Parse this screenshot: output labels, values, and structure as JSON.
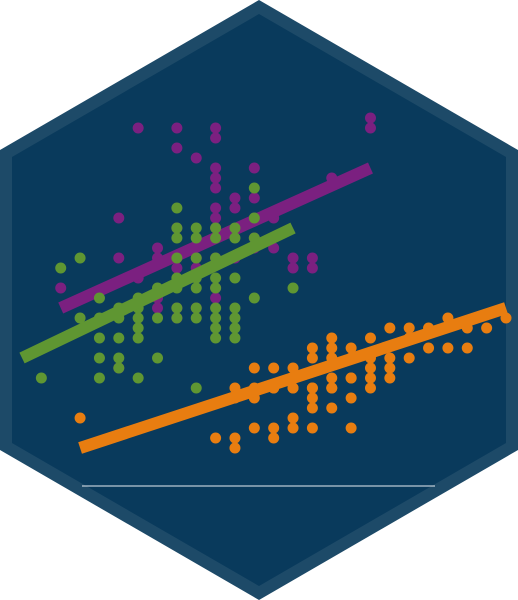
{
  "logo": {
    "shape": "hexagon",
    "colors": {
      "border": "#1d4a68",
      "fill": "#093a5c",
      "baseline": "#e6ecf2"
    }
  },
  "chart_data": {
    "type": "scatter",
    "title": "",
    "xlabel": "",
    "ylabel": "",
    "xlim": [
      0,
      25
    ],
    "ylim": [
      0,
      35
    ],
    "grid": false,
    "legend": "none",
    "series": [
      {
        "color": "#7b2080",
        "trend": [
          [
            2,
            16
          ],
          [
            18,
            30
          ]
        ],
        "points": [
          [
            6,
            34
          ],
          [
            8,
            34
          ],
          [
            10,
            34
          ],
          [
            10,
            33
          ],
          [
            8,
            32
          ],
          [
            9,
            31
          ],
          [
            10,
            30
          ],
          [
            10,
            29
          ],
          [
            12,
            30
          ],
          [
            10,
            28
          ],
          [
            11,
            27
          ],
          [
            12,
            27
          ],
          [
            10,
            26
          ],
          [
            11,
            26
          ],
          [
            10,
            25
          ],
          [
            12,
            25
          ],
          [
            13,
            25
          ],
          [
            5,
            25
          ],
          [
            8,
            24
          ],
          [
            10,
            24
          ],
          [
            10,
            23
          ],
          [
            12,
            23
          ],
          [
            12,
            22
          ],
          [
            13,
            22
          ],
          [
            7,
            22
          ],
          [
            7,
            21
          ],
          [
            8,
            21
          ],
          [
            9,
            21
          ],
          [
            10,
            21
          ],
          [
            11,
            21
          ],
          [
            14,
            21
          ],
          [
            5,
            21
          ],
          [
            14,
            20
          ],
          [
            15,
            21
          ],
          [
            15,
            20
          ],
          [
            8,
            20
          ],
          [
            9,
            20
          ],
          [
            6,
            19
          ],
          [
            10,
            18
          ],
          [
            10,
            17
          ],
          [
            2,
            18
          ],
          [
            7,
            17
          ],
          [
            7,
            16
          ],
          [
            8,
            16
          ],
          [
            9,
            16
          ],
          [
            8,
            15
          ],
          [
            5,
            10
          ],
          [
            18,
            35
          ],
          [
            18,
            34
          ],
          [
            16,
            29
          ]
        ]
      },
      {
        "color": "#5f9632",
        "trend": [
          [
            0,
            11
          ],
          [
            14,
            24
          ]
        ],
        "points": [
          [
            12,
            28
          ],
          [
            8,
            26
          ],
          [
            12,
            25
          ],
          [
            8,
            24
          ],
          [
            9,
            24
          ],
          [
            10,
            24
          ],
          [
            11,
            24
          ],
          [
            8,
            23
          ],
          [
            9,
            23
          ],
          [
            10,
            23
          ],
          [
            11,
            23
          ],
          [
            12,
            23
          ],
          [
            3,
            21
          ],
          [
            8,
            21
          ],
          [
            9,
            21
          ],
          [
            10,
            21
          ],
          [
            2,
            20
          ],
          [
            8,
            19
          ],
          [
            9,
            19
          ],
          [
            10,
            19
          ],
          [
            11,
            19
          ],
          [
            7,
            18
          ],
          [
            8,
            18
          ],
          [
            9,
            18
          ],
          [
            10,
            18
          ],
          [
            14,
            18
          ],
          [
            4,
            17
          ],
          [
            6,
            17
          ],
          [
            12,
            17
          ],
          [
            5,
            16
          ],
          [
            6,
            16
          ],
          [
            8,
            16
          ],
          [
            9,
            16
          ],
          [
            10,
            16
          ],
          [
            11,
            16
          ],
          [
            3,
            15
          ],
          [
            4,
            15
          ],
          [
            5,
            15
          ],
          [
            6,
            15
          ],
          [
            7,
            15
          ],
          [
            8,
            15
          ],
          [
            9,
            15
          ],
          [
            10,
            15
          ],
          [
            11,
            15
          ],
          [
            6,
            14
          ],
          [
            10,
            14
          ],
          [
            11,
            14
          ],
          [
            4,
            13
          ],
          [
            5,
            13
          ],
          [
            6,
            13
          ],
          [
            10,
            13
          ],
          [
            11,
            13
          ],
          [
            4,
            11
          ],
          [
            5,
            11
          ],
          [
            7,
            11
          ],
          [
            5,
            10
          ],
          [
            1,
            9
          ],
          [
            4,
            9
          ],
          [
            6,
            9
          ],
          [
            9,
            8
          ]
        ]
      },
      {
        "color": "#e87d10",
        "trend": [
          [
            3,
            2
          ],
          [
            25,
            16
          ]
        ],
        "points": [
          [
            3,
            5
          ],
          [
            10,
            3
          ],
          [
            11,
            3
          ],
          [
            13,
            3
          ],
          [
            11,
            2
          ],
          [
            12,
            4
          ],
          [
            13,
            4
          ],
          [
            14,
            4
          ],
          [
            15,
            4
          ],
          [
            17,
            4
          ],
          [
            14,
            5
          ],
          [
            15,
            6
          ],
          [
            15,
            7
          ],
          [
            16,
            6
          ],
          [
            17,
            7
          ],
          [
            16,
            8
          ],
          [
            18,
            8
          ],
          [
            11,
            7
          ],
          [
            12,
            7
          ],
          [
            13,
            8
          ],
          [
            14,
            8
          ],
          [
            15,
            8
          ],
          [
            16,
            8
          ],
          [
            17,
            9
          ],
          [
            18,
            9
          ],
          [
            19,
            9
          ],
          [
            11,
            8
          ],
          [
            12,
            8
          ],
          [
            13,
            8
          ],
          [
            14,
            8
          ],
          [
            15,
            8
          ],
          [
            16,
            9
          ],
          [
            17,
            9
          ],
          [
            18,
            10
          ],
          [
            19,
            10
          ],
          [
            15,
            11
          ],
          [
            16,
            11
          ],
          [
            17,
            11
          ],
          [
            18,
            11
          ],
          [
            19,
            11
          ],
          [
            20,
            11
          ],
          [
            21,
            12
          ],
          [
            22,
            12
          ],
          [
            23,
            12
          ],
          [
            15,
            12
          ],
          [
            16,
            13
          ],
          [
            18,
            13
          ],
          [
            20,
            13
          ],
          [
            21,
            14
          ],
          [
            23,
            14
          ],
          [
            24,
            14
          ],
          [
            25,
            15
          ],
          [
            22,
            15
          ],
          [
            19,
            14
          ],
          [
            20,
            14
          ],
          [
            16,
            12
          ],
          [
            17,
            12
          ],
          [
            14,
            10
          ],
          [
            13,
            10
          ],
          [
            12,
            10
          ]
        ]
      }
    ]
  }
}
